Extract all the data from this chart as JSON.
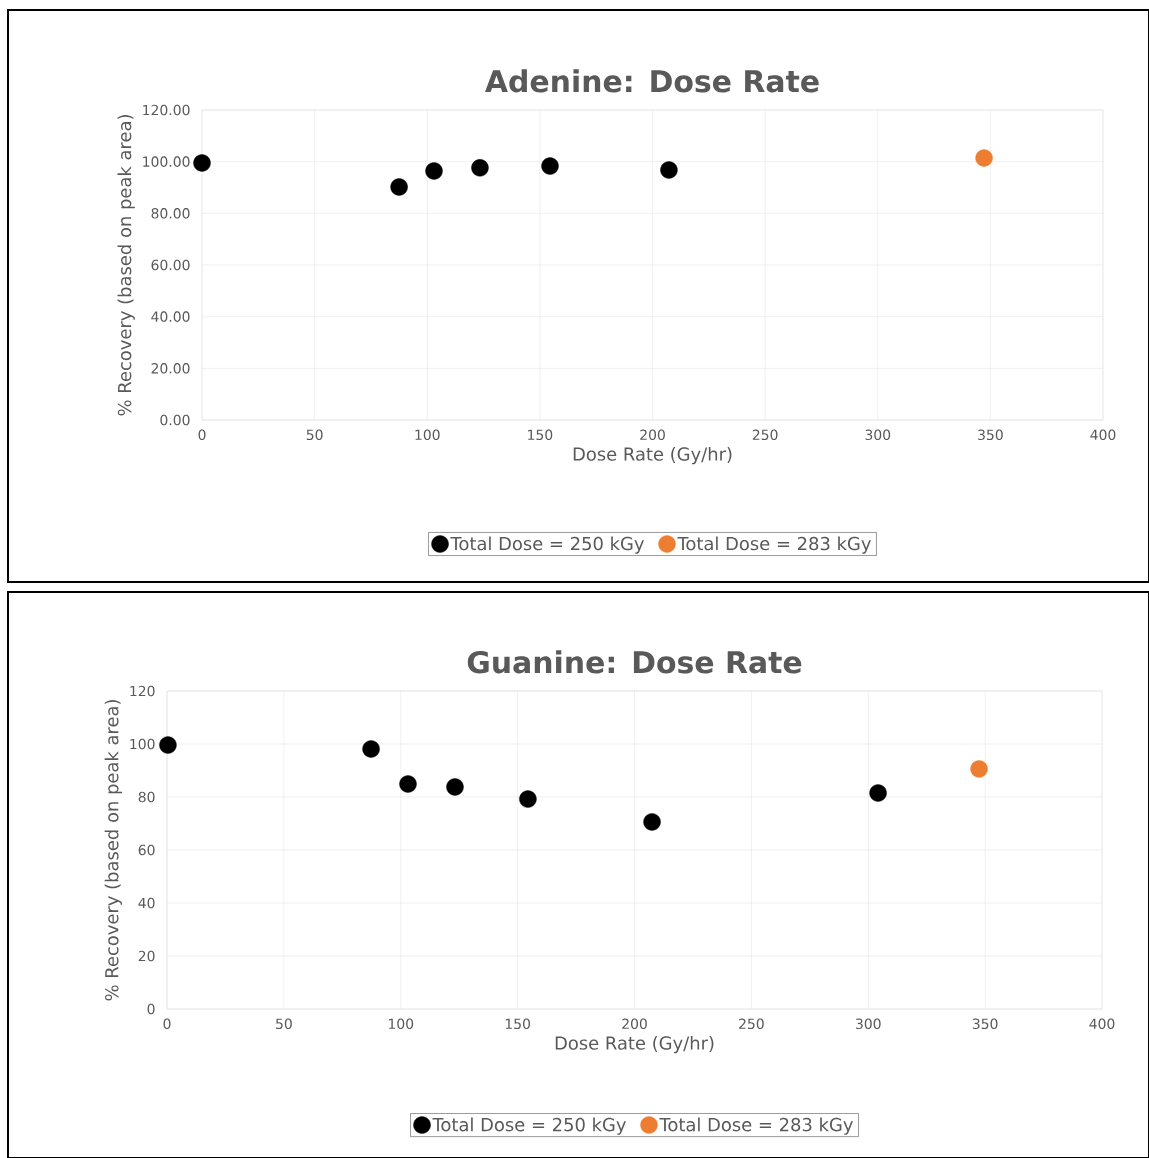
{
  "chart_data": [
    {
      "type": "scatter",
      "title": "Adenine: Dose Rate",
      "xlabel": "Dose Rate (Gy/hr)",
      "ylabel": "% Recovery (based on peak area)",
      "xlim": [
        0,
        400
      ],
      "xticks": [
        0,
        50,
        100,
        150,
        200,
        250,
        300,
        350,
        400
      ],
      "ylim": [
        0,
        120
      ],
      "yticks": [
        {
          "value": 0,
          "label": "0.00"
        },
        {
          "value": 20,
          "label": "20.00"
        },
        {
          "value": 40,
          "label": "40.00"
        },
        {
          "value": 60,
          "label": "60.00"
        },
        {
          "value": 80,
          "label": "80.00"
        },
        {
          "value": 100,
          "label": "100.00"
        },
        {
          "value": 120,
          "label": "120.00"
        }
      ],
      "grid": true,
      "legend": "bottom",
      "marker": "circle",
      "series": [
        {
          "name": "Total Dose = 250 kGy",
          "color": "#000000",
          "x": [
            0,
            87.5,
            103,
            123.4,
            154.5,
            207.3
          ],
          "values": [
            99.5,
            90.2,
            96.4,
            97.6,
            98.3,
            96.8
          ]
        },
        {
          "name": "Total Dose = 283 kGy",
          "color": "#ed7d31",
          "x": [
            347.2
          ],
          "values": [
            101.4
          ]
        }
      ]
    },
    {
      "type": "scatter",
      "title": "Guanine: Dose Rate",
      "xlabel": "Dose Rate (Gy/hr)",
      "ylabel": "% Recovery (based on peak area)",
      "xlim": [
        0,
        400
      ],
      "xticks": [
        0,
        50,
        100,
        150,
        200,
        250,
        300,
        350,
        400
      ],
      "ylim": [
        0,
        120
      ],
      "yticks": [
        0,
        20,
        40,
        60,
        80,
        100,
        120
      ],
      "grid": true,
      "legend": "bottom",
      "marker": "circle",
      "series": [
        {
          "name": "Total Dose = 250 kGy",
          "color": "#000000",
          "x": [
            0.4,
            87.3,
            103.1,
            123.2,
            154.4,
            207.5,
            304.2
          ],
          "values": [
            99.6,
            98.1,
            84.9,
            83.8,
            79.2,
            70.6,
            81.5
          ]
        },
        {
          "name": "Total Dose = 283 kGy",
          "color": "#ed7d31",
          "x": [
            347.4
          ],
          "values": [
            90.6
          ]
        }
      ]
    }
  ]
}
